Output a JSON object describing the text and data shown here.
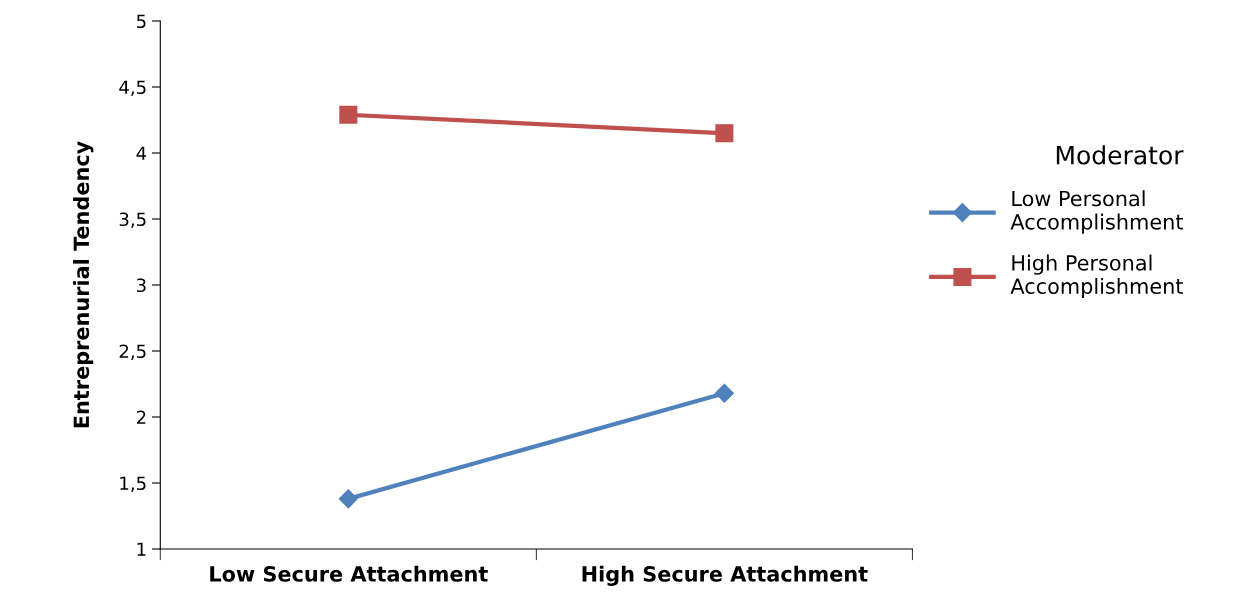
{
  "chart_data": {
    "type": "line",
    "ylabel": "Entreprenurial Tendency",
    "legend_title": "Moderator",
    "categories": [
      "Low Secure Attachment",
      "High Secure Attachment"
    ],
    "series": [
      {
        "name": "Low Personal\nAccomplishment",
        "color": "#4f81bd",
        "marker": "diamond",
        "values": [
          1.38,
          2.18
        ]
      },
      {
        "name": "High Personal\nAccomplishment",
        "color": "#c0504d",
        "marker": "square",
        "values": [
          4.29,
          4.15
        ]
      }
    ],
    "ylim": [
      1,
      5
    ],
    "yticks": [
      1,
      {
        "value": 1.5,
        "label": "1,5"
      },
      2,
      {
        "value": 2.5,
        "label": "2,5"
      },
      3,
      {
        "value": 3.5,
        "label": "3,5"
      },
      4,
      {
        "value": 4.5,
        "label": "4,5"
      },
      5
    ],
    "grid": false,
    "legend": "right",
    "line_style": "solid"
  }
}
